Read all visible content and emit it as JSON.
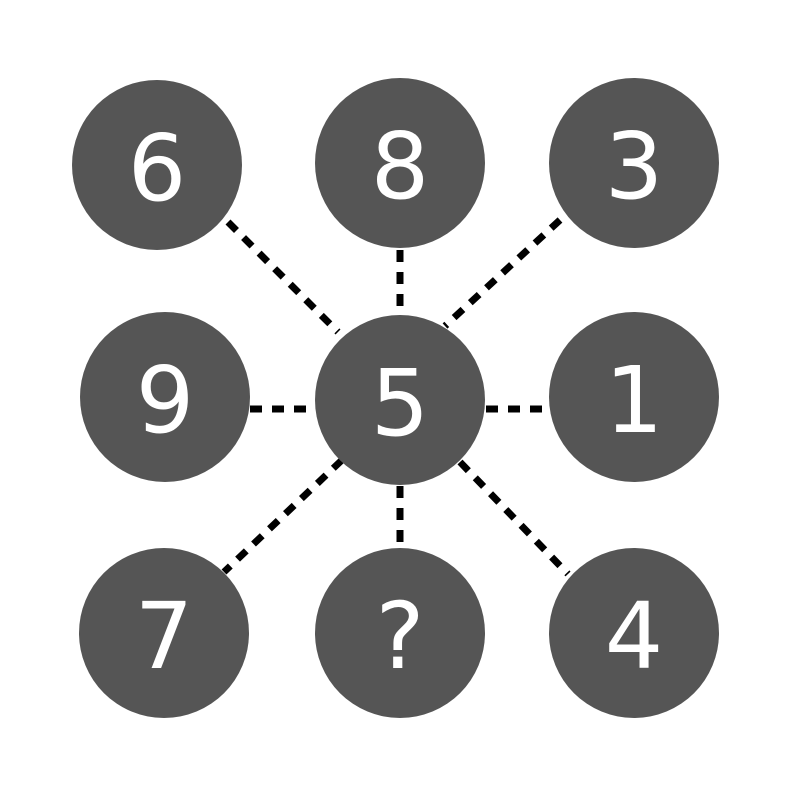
{
  "colors": {
    "node_fill": "#555555",
    "node_text": "#ffffff",
    "connector": "#000000",
    "background": "#ffffff"
  },
  "nodes": {
    "top_left": "6",
    "top_center": "8",
    "top_right": "3",
    "mid_left": "9",
    "center": "5",
    "mid_right": "1",
    "bottom_left": "7",
    "bottom_center": "?",
    "bottom_right": "4"
  }
}
